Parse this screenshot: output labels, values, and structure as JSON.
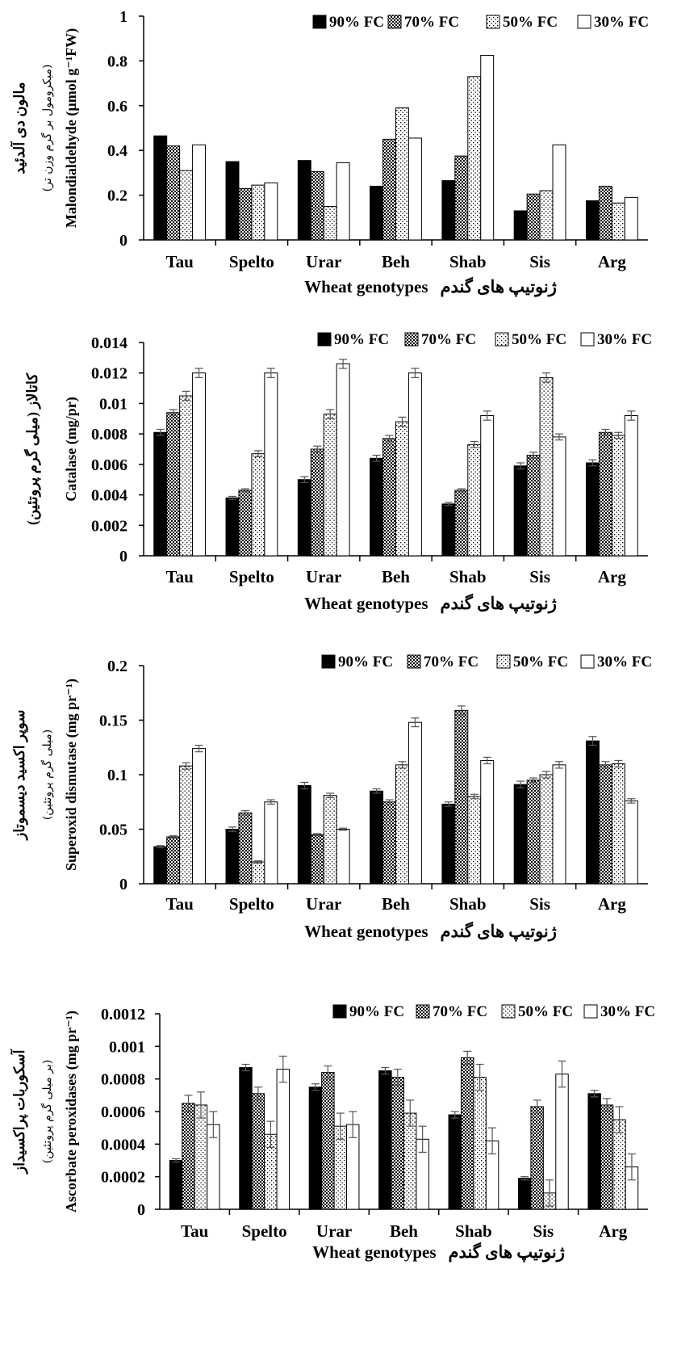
{
  "legend": [
    "90% FC",
    "70% FC",
    "50% FC",
    "30% FC"
  ],
  "chart_data": [
    {
      "type": "bar",
      "categories": [
        "Tau",
        "Spelto",
        "Urar",
        "Beh",
        "Shab",
        "Sis",
        "Arg"
      ],
      "xlabel": "Wheat genotypes",
      "xlabel_fa": "ژنوتیپ های گندم",
      "ylabel_fa": "مالون دی آلدئید",
      "ylabel_sub": "(میکرومول بر گرم وزن تر)",
      "ylabel": "Malondialdehyde (µmol g⁻¹FW)",
      "ylim": [
        0,
        1
      ],
      "yticks": [
        0,
        0.2,
        0.4,
        0.6,
        0.8,
        1
      ],
      "ytick_labels": [
        "0",
        "0.2",
        "0.4",
        "0.6",
        "0.8",
        "1"
      ],
      "error_bars": false,
      "series": [
        {
          "name": "90% FC",
          "values": [
            0.465,
            0.35,
            0.355,
            0.24,
            0.265,
            0.13,
            0.175
          ]
        },
        {
          "name": "70% FC",
          "values": [
            0.42,
            0.23,
            0.305,
            0.45,
            0.375,
            0.205,
            0.24
          ]
        },
        {
          "name": "50% FC",
          "values": [
            0.31,
            0.245,
            0.15,
            0.59,
            0.73,
            0.22,
            0.165
          ]
        },
        {
          "name": "30% FC",
          "values": [
            0.425,
            0.255,
            0.345,
            0.455,
            0.825,
            0.425,
            0.19
          ]
        }
      ]
    },
    {
      "type": "bar",
      "categories": [
        "Tau",
        "Spelto",
        "Urar",
        "Beh",
        "Shab",
        "Sis",
        "Arg"
      ],
      "xlabel": "Wheat genotypes",
      "xlabel_fa": "ژنوتیپ های گندم",
      "ylabel_fa": "کاتالاز (میلی گرم پروتئین)",
      "ylabel_sub": "",
      "ylabel": "Catalase (mg/pr)",
      "ylim": [
        0,
        0.014
      ],
      "yticks": [
        0,
        0.002,
        0.004,
        0.006,
        0.008,
        0.01,
        0.012,
        0.014
      ],
      "ytick_labels": [
        "0",
        "0.002",
        "0.004",
        "0.006",
        "0.008",
        "0.01",
        "0.012",
        "0.014"
      ],
      "error_bars": true,
      "series": [
        {
          "name": "90% FC",
          "values": [
            0.0081,
            0.0038,
            0.005,
            0.0064,
            0.0034,
            0.0059,
            0.0061
          ],
          "errors": [
            0.0002,
            0.0001,
            0.0002,
            0.0002,
            0.0001,
            0.0002,
            0.0002
          ]
        },
        {
          "name": "70% FC",
          "values": [
            0.0094,
            0.0043,
            0.007,
            0.0077,
            0.0043,
            0.0066,
            0.0081
          ],
          "errors": [
            0.0002,
            0.0001,
            0.0002,
            0.0002,
            0.0001,
            0.0002,
            0.0002
          ]
        },
        {
          "name": "50% FC",
          "values": [
            0.0105,
            0.0067,
            0.0093,
            0.0088,
            0.0073,
            0.0117,
            0.0079
          ],
          "errors": [
            0.0003,
            0.0002,
            0.0003,
            0.0003,
            0.0002,
            0.0003,
            0.0002
          ]
        },
        {
          "name": "30% FC",
          "values": [
            0.012,
            0.012,
            0.0126,
            0.012,
            0.0092,
            0.0078,
            0.0092
          ],
          "errors": [
            0.0003,
            0.0003,
            0.0003,
            0.0003,
            0.0003,
            0.0002,
            0.0003
          ]
        }
      ]
    },
    {
      "type": "bar",
      "categories": [
        "Tau",
        "Spelto",
        "Urar",
        "Beh",
        "Shab",
        "Sis",
        "Arg"
      ],
      "xlabel": "Wheat genotypes",
      "xlabel_fa": "ژنوتیپ های گندم",
      "ylabel_fa": "سوپر اکسید دیسموتاز",
      "ylabel_sub": "(میلی گرم پروتئین)",
      "ylabel": "Superoxid dismutase (mg pr⁻¹)",
      "ylim": [
        0,
        0.2
      ],
      "yticks": [
        0,
        0.05,
        0.1,
        0.15,
        0.2
      ],
      "ytick_labels": [
        "0",
        "0.05",
        "0.1",
        "0.15",
        "0.2"
      ],
      "error_bars": true,
      "series": [
        {
          "name": "90% FC",
          "values": [
            0.034,
            0.05,
            0.09,
            0.085,
            0.073,
            0.091,
            0.131
          ],
          "errors": [
            0.001,
            0.002,
            0.003,
            0.002,
            0.002,
            0.003,
            0.004
          ]
        },
        {
          "name": "70% FC",
          "values": [
            0.043,
            0.065,
            0.045,
            0.075,
            0.159,
            0.095,
            0.109
          ],
          "errors": [
            0.001,
            0.002,
            0.001,
            0.002,
            0.004,
            0.002,
            0.003
          ]
        },
        {
          "name": "50% FC",
          "values": [
            0.108,
            0.02,
            0.081,
            0.109,
            0.08,
            0.1,
            0.11
          ],
          "errors": [
            0.003,
            0.001,
            0.002,
            0.003,
            0.002,
            0.003,
            0.003
          ]
        },
        {
          "name": "30% FC",
          "values": [
            0.124,
            0.075,
            0.05,
            0.148,
            0.113,
            0.109,
            0.076
          ],
          "errors": [
            0.003,
            0.002,
            0.001,
            0.004,
            0.003,
            0.003,
            0.002
          ]
        }
      ]
    },
    {
      "type": "bar",
      "categories": [
        "Tau",
        "Spelto",
        "Urar",
        "Beh",
        "Shab",
        "Sis",
        "Arg"
      ],
      "xlabel": "Wheat genotypes",
      "xlabel_fa": "ژنوتیپ های گندم",
      "ylabel_fa": "آسکوربات پراکسیداز",
      "ylabel_sub": "(بر میلی گرم پروتئین)",
      "ylabel": "Ascorbate peroxidases (mg pr⁻¹)",
      "ylim": [
        0,
        0.0012
      ],
      "yticks": [
        0,
        0.0002,
        0.0004,
        0.0006,
        0.0008,
        0.001,
        0.0012
      ],
      "ytick_labels": [
        "0",
        "0.0002",
        "0.0004",
        "0.0006",
        "0.0008",
        "0.001",
        "0.0012"
      ],
      "error_bars": true,
      "series": [
        {
          "name": "90% FC",
          "values": [
            0.0003,
            0.00087,
            0.00075,
            0.00085,
            0.00058,
            0.00019,
            0.00071
          ],
          "errors": [
            1e-05,
            2e-05,
            2e-05,
            2e-05,
            2e-05,
            1e-05,
            2e-05
          ]
        },
        {
          "name": "70% FC",
          "values": [
            0.00065,
            0.00071,
            0.00084,
            0.00081,
            0.00093,
            0.00063,
            0.00064
          ],
          "errors": [
            5e-05,
            4e-05,
            4e-05,
            5e-05,
            4e-05,
            4e-05,
            4e-05
          ]
        },
        {
          "name": "50% FC",
          "values": [
            0.00064,
            0.00046,
            0.00051,
            0.00059,
            0.00081,
            0.0001,
            0.00055
          ],
          "errors": [
            8e-05,
            8e-05,
            8e-05,
            8e-05,
            8e-05,
            8e-05,
            8e-05
          ]
        },
        {
          "name": "30% FC",
          "values": [
            0.00052,
            0.00086,
            0.00052,
            0.00043,
            0.00042,
            0.00083,
            0.00026
          ],
          "errors": [
            8e-05,
            8e-05,
            8e-05,
            8e-05,
            8e-05,
            8e-05,
            8e-05
          ]
        }
      ]
    }
  ]
}
